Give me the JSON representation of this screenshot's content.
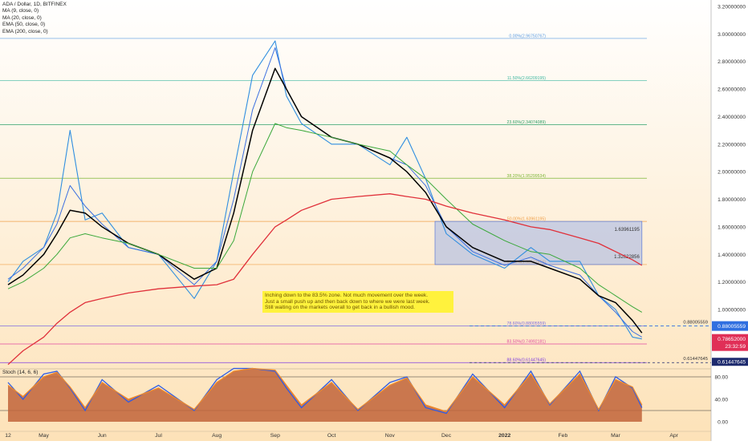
{
  "legend": {
    "symbol": "ADA / Dollar, 1D, BITFINEX",
    "ma9": "MA (9, close, 0)",
    "ma20": "MA (20, close, 0)",
    "ema50": "EMA (50, close, 0)",
    "ema200": "EMA (200, close, 0)"
  },
  "stoch_title": "Stoch (14, 6, 6)",
  "note": [
    "Inching down to the 83.5% zone. Not much movement over the week.",
    "Just a small push up and then back down to where we were last week.",
    "Still waiting on the markets overall to get back in a bullish mood."
  ],
  "colors": {
    "background_top": "#ffffff",
    "background_bottom": "#fde2b8",
    "price": "#2f8ee0",
    "ma9": "#3b6fe0",
    "ma20": "#000000",
    "ema50": "#3aa83a",
    "ema200": "#e0303a",
    "box": "#8fa6e8",
    "stoch_fill": "#c1643a",
    "stoch_k": "#2e5be6",
    "stoch_d": "#f08a2a",
    "current_tag": "#e02f57",
    "level_tag": "#2f6fe0"
  },
  "chart_data": [
    {
      "type": "line",
      "title": "ADA / Dollar, 1D, BITFINEX",
      "ylim": [
        0.58,
        3.25
      ],
      "y_ticks": [
        "3.20000000",
        "3.00000000",
        "2.80000000",
        "2.60000000",
        "2.40000000",
        "2.20000000",
        "2.00000000",
        "1.80000000",
        "1.60000000",
        "1.40000000",
        "1.20000000",
        "1.00000000"
      ],
      "x_ticks": [
        "12",
        "May",
        "Jun",
        "Jul",
        "Aug",
        "Sep",
        "Oct",
        "Nov",
        "Dec",
        "2022",
        "Feb",
        "Mar",
        "Apr"
      ],
      "x": [
        "2021-04-12",
        "2021-04-20",
        "2021-05-01",
        "2021-05-08",
        "2021-05-15",
        "2021-05-23",
        "2021-06-01",
        "2021-06-15",
        "2021-07-01",
        "2021-07-20",
        "2021-08-01",
        "2021-08-10",
        "2021-08-20",
        "2021-09-01",
        "2021-09-07",
        "2021-09-15",
        "2021-10-01",
        "2021-10-15",
        "2021-11-01",
        "2021-11-10",
        "2021-11-20",
        "2021-12-01",
        "2021-12-15",
        "2022-01-01",
        "2022-01-15",
        "2022-01-25",
        "2022-02-10",
        "2022-02-20",
        "2022-03-01",
        "2022-03-10",
        "2022-03-15"
      ],
      "series": [
        {
          "name": "ADA / Dollar",
          "values": [
            1.2,
            1.35,
            1.45,
            1.7,
            2.3,
            1.65,
            1.7,
            1.45,
            1.4,
            1.08,
            1.35,
            2.0,
            2.7,
            2.95,
            2.55,
            2.35,
            2.2,
            2.2,
            2.05,
            2.25,
            1.95,
            1.55,
            1.4,
            1.3,
            1.45,
            1.35,
            1.35,
            1.1,
            1.0,
            0.8,
            0.7865
          ]
        },
        {
          "name": "MA (9, close, 0)",
          "values": [
            1.22,
            1.3,
            1.45,
            1.62,
            1.9,
            1.75,
            1.62,
            1.45,
            1.4,
            1.18,
            1.35,
            1.8,
            2.45,
            2.9,
            2.6,
            2.4,
            2.25,
            2.2,
            2.1,
            2.05,
            1.9,
            1.6,
            1.42,
            1.32,
            1.38,
            1.32,
            1.25,
            1.1,
            0.98,
            0.84,
            0.8
          ]
        },
        {
          "name": "MA (20, close, 0)",
          "values": [
            1.18,
            1.25,
            1.4,
            1.55,
            1.72,
            1.7,
            1.6,
            1.48,
            1.4,
            1.22,
            1.3,
            1.7,
            2.3,
            2.75,
            2.6,
            2.4,
            2.25,
            2.2,
            2.1,
            2.0,
            1.85,
            1.6,
            1.45,
            1.35,
            1.35,
            1.3,
            1.22,
            1.1,
            1.05,
            0.92,
            0.83
          ]
        },
        {
          "name": "EMA (50, close, 0)",
          "values": [
            1.15,
            1.2,
            1.3,
            1.4,
            1.52,
            1.55,
            1.52,
            1.48,
            1.4,
            1.3,
            1.3,
            1.5,
            2.0,
            2.35,
            2.32,
            2.3,
            2.25,
            2.2,
            2.15,
            2.05,
            1.95,
            1.8,
            1.62,
            1.5,
            1.42,
            1.4,
            1.3,
            1.18,
            1.1,
            1.02,
            0.98
          ]
        },
        {
          "name": "EMA (200, close, 0)",
          "values": [
            0.6,
            0.7,
            0.8,
            0.9,
            0.98,
            1.05,
            1.08,
            1.12,
            1.15,
            1.17,
            1.18,
            1.22,
            1.4,
            1.6,
            1.65,
            1.72,
            1.8,
            1.82,
            1.84,
            1.82,
            1.8,
            1.75,
            1.7,
            1.65,
            1.6,
            1.58,
            1.52,
            1.48,
            1.42,
            1.36,
            1.32
          ]
        }
      ],
      "fib_levels": [
        {
          "ratio": "0.00%",
          "value": "2.96750767",
          "y": 2.9675
        },
        {
          "ratio": "11.50%",
          "value": "2.66209195",
          "y": 2.6621
        },
        {
          "ratio": "23.60%",
          "value": "2.34074089",
          "y": 2.3407
        },
        {
          "ratio": "38.20%",
          "value": "1.95299534",
          "y": 1.953
        },
        {
          "ratio": "50.00%",
          "value": "1.63961195",
          "y": 1.6396
        },
        {
          "ratio": "61.80%",
          "value": "1.32622856",
          "y": 1.3262
        },
        {
          "ratio": "78.60%",
          "value": "0.88005559",
          "y": 0.8801
        },
        {
          "ratio": "83.50%",
          "value": "0.74992181",
          "y": 0.7499
        },
        {
          "ratio": "88.60%",
          "value": "0.61447645",
          "y": 0.6145
        }
      ],
      "box_labels": [
        "1.63961195",
        "1.32622856"
      ],
      "level_labels": [
        "0.88005559",
        "0.61447645"
      ],
      "price_tags": {
        "level": "0.88005559",
        "current": "0.78652000",
        "countdown": "23:32:59",
        "bottom": "0.61447645"
      }
    },
    {
      "type": "area",
      "title": "Stoch (14, 6, 6)",
      "ylim": [
        -5,
        110
      ],
      "y_ticks": [
        "80.00",
        "40.00",
        "0.00"
      ],
      "bands": [
        80,
        20
      ],
      "x": [
        "2021-04-12",
        "2021-04-20",
        "2021-05-01",
        "2021-05-08",
        "2021-05-15",
        "2021-05-23",
        "2021-06-01",
        "2021-06-15",
        "2021-07-01",
        "2021-07-20",
        "2021-08-01",
        "2021-08-10",
        "2021-08-20",
        "2021-09-01",
        "2021-09-07",
        "2021-09-15",
        "2021-10-01",
        "2021-10-15",
        "2021-11-01",
        "2021-11-10",
        "2021-11-20",
        "2021-12-01",
        "2021-12-15",
        "2022-01-01",
        "2022-01-15",
        "2022-01-25",
        "2022-02-10",
        "2022-02-20",
        "2022-03-01",
        "2022-03-10",
        "2022-03-15"
      ],
      "series": [
        {
          "name": "%K",
          "values": [
            70,
            40,
            85,
            90,
            60,
            20,
            75,
            35,
            65,
            20,
            75,
            95,
            95,
            90,
            60,
            25,
            75,
            20,
            70,
            80,
            25,
            15,
            85,
            25,
            90,
            30,
            90,
            20,
            80,
            60,
            25
          ]
        },
        {
          "name": "%D",
          "values": [
            65,
            45,
            80,
            88,
            62,
            25,
            70,
            40,
            60,
            22,
            70,
            90,
            95,
            92,
            65,
            30,
            70,
            22,
            65,
            78,
            30,
            18,
            80,
            30,
            85,
            32,
            85,
            22,
            75,
            62,
            30
          ]
        }
      ]
    }
  ]
}
